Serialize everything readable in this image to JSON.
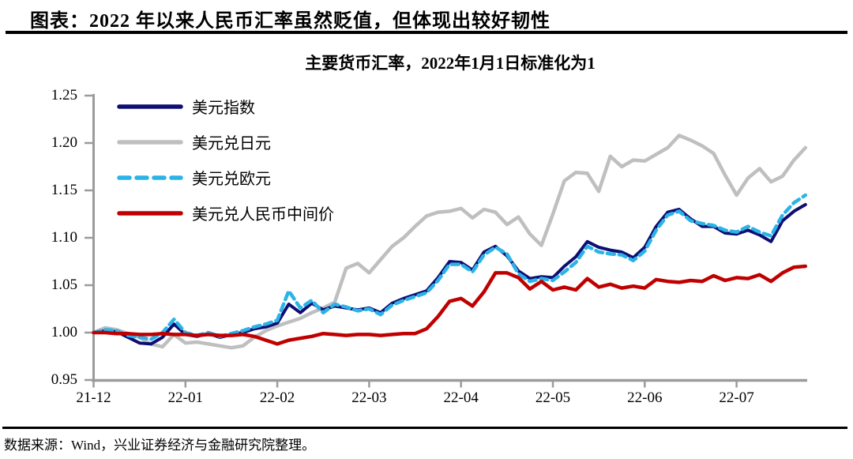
{
  "header": {
    "title": "图表：2022 年以来人民币汇率虽然贬值，但体现出较好韧性"
  },
  "footer": {
    "source": "数据来源：Wind，兴业证券经济与金融研究院整理。"
  },
  "chart_data": {
    "type": "line",
    "title": "主要货币汇率，2022年1月1日标准化为1",
    "xlabel": "",
    "ylabel": "",
    "axis_color": "#9b9b9b",
    "grid": false,
    "legend_position": "top-left",
    "y_axis": {
      "range": [
        0.95,
        1.25
      ],
      "ticks": [
        0.95,
        1.0,
        1.05,
        1.1,
        1.15,
        1.2,
        1.25
      ],
      "tick_labels": [
        "0.95",
        "1.00",
        "1.05",
        "1.10",
        "1.15",
        "1.20",
        "1.25"
      ]
    },
    "x_axis": {
      "unit": "year-month",
      "tick_positions_months": [
        0,
        1,
        2,
        3,
        4,
        5,
        6,
        7
      ],
      "tick_labels": [
        "21-12",
        "22-01",
        "22-02",
        "22-03",
        "22-04",
        "22-05",
        "22-06",
        "22-07"
      ],
      "range_months": [
        0,
        7.75
      ]
    },
    "x_start_month": 0,
    "x_step_month": 0.125,
    "series": [
      {
        "key": "usd-index",
        "name": "美元指数",
        "color": "#0e0e72",
        "dash": "solid",
        "width": 4,
        "values": [
          1.0,
          1.002,
          1.001,
          0.995,
          0.989,
          0.988,
          0.995,
          1.009,
          0.998,
          0.996,
          0.999,
          0.995,
          0.998,
          1.0,
          1.004,
          1.006,
          1.01,
          1.03,
          1.021,
          1.031,
          1.024,
          1.028,
          1.026,
          1.024,
          1.026,
          1.021,
          1.031,
          1.036,
          1.04,
          1.044,
          1.058,
          1.075,
          1.074,
          1.066,
          1.085,
          1.091,
          1.081,
          1.065,
          1.057,
          1.059,
          1.058,
          1.07,
          1.08,
          1.096,
          1.09,
          1.087,
          1.085,
          1.079,
          1.09,
          1.112,
          1.127,
          1.13,
          1.12,
          1.112,
          1.112,
          1.105,
          1.104,
          1.108,
          1.103,
          1.096,
          1.118,
          1.128,
          1.135
        ]
      },
      {
        "key": "usd-jpy",
        "name": "美元兑日元",
        "color": "#bfbfbf",
        "dash": "solid",
        "width": 4.5,
        "values": [
          1.0,
          1.005,
          1.003,
          0.999,
          0.995,
          0.988,
          0.985,
          0.998,
          0.989,
          0.99,
          0.988,
          0.986,
          0.984,
          0.986,
          0.995,
          1.002,
          1.007,
          1.011,
          1.015,
          1.021,
          1.026,
          1.032,
          1.068,
          1.073,
          1.063,
          1.077,
          1.091,
          1.1,
          1.112,
          1.123,
          1.127,
          1.128,
          1.131,
          1.121,
          1.13,
          1.127,
          1.114,
          1.122,
          1.104,
          1.092,
          1.125,
          1.16,
          1.169,
          1.168,
          1.149,
          1.186,
          1.175,
          1.182,
          1.181,
          1.188,
          1.195,
          1.208,
          1.203,
          1.197,
          1.189,
          1.166,
          1.145,
          1.163,
          1.173,
          1.159,
          1.165,
          1.182,
          1.195
        ]
      },
      {
        "key": "usd-eur",
        "name": "美元兑欧元",
        "color": "#2bb3e8",
        "dash": "dashed",
        "width": 4.5,
        "values": [
          1.0,
          1.003,
          1.002,
          0.997,
          0.995,
          0.993,
          1.0,
          1.014,
          1.0,
          0.997,
          1.0,
          0.996,
          0.999,
          1.002,
          1.006,
          1.009,
          1.013,
          1.044,
          1.026,
          1.034,
          1.021,
          1.03,
          1.027,
          1.023,
          1.025,
          1.019,
          1.029,
          1.034,
          1.038,
          1.042,
          1.055,
          1.072,
          1.072,
          1.064,
          1.082,
          1.09,
          1.083,
          1.062,
          1.054,
          1.057,
          1.055,
          1.064,
          1.074,
          1.091,
          1.085,
          1.083,
          1.082,
          1.076,
          1.086,
          1.108,
          1.124,
          1.128,
          1.118,
          1.115,
          1.113,
          1.108,
          1.106,
          1.112,
          1.106,
          1.102,
          1.124,
          1.137,
          1.145
        ]
      },
      {
        "key": "usd-cny-fixing",
        "name": "美元兑人民币中间价",
        "color": "#c00000",
        "dash": "solid",
        "width": 4.5,
        "values": [
          1.0,
          1.0,
          0.999,
          0.999,
          0.998,
          0.998,
          0.999,
          0.998,
          0.998,
          0.997,
          0.998,
          0.997,
          0.997,
          0.998,
          0.996,
          0.992,
          0.988,
          0.992,
          0.994,
          0.996,
          0.999,
          0.998,
          0.997,
          0.998,
          0.998,
          0.997,
          0.998,
          0.999,
          0.999,
          1.004,
          1.017,
          1.033,
          1.036,
          1.028,
          1.043,
          1.063,
          1.063,
          1.058,
          1.046,
          1.054,
          1.045,
          1.048,
          1.045,
          1.057,
          1.048,
          1.051,
          1.047,
          1.049,
          1.047,
          1.056,
          1.054,
          1.053,
          1.055,
          1.054,
          1.06,
          1.055,
          1.058,
          1.057,
          1.061,
          1.054,
          1.063,
          1.069,
          1.07
        ]
      }
    ]
  }
}
